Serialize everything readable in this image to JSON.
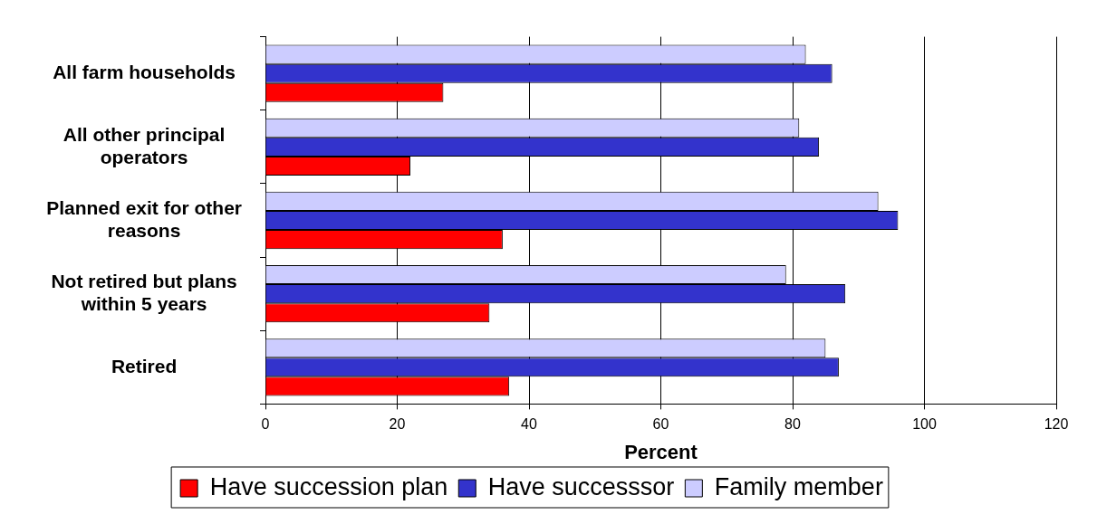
{
  "chart_data": {
    "type": "bar",
    "orientation": "horizontal",
    "categories": [
      "All farm households",
      "All other principal operators",
      "Planned exit for other reasons",
      "Not retired but plans within 5 years",
      "Retired"
    ],
    "series": [
      {
        "name": "Have succession plan",
        "color": "#ff0000",
        "values": [
          27,
          22,
          36,
          34,
          37
        ]
      },
      {
        "name": "Have successsor",
        "color": "#3333cc",
        "values": [
          86,
          84,
          96,
          88,
          87
        ]
      },
      {
        "name": "Family member",
        "color": "#ccccff",
        "values": [
          82,
          81,
          93,
          79,
          85
        ]
      }
    ],
    "xlabel": "Percent",
    "xlim": [
      0,
      120
    ],
    "xticks": [
      0,
      20,
      40,
      60,
      80,
      100,
      120
    ],
    "grid": "x",
    "legend": "bottom"
  }
}
